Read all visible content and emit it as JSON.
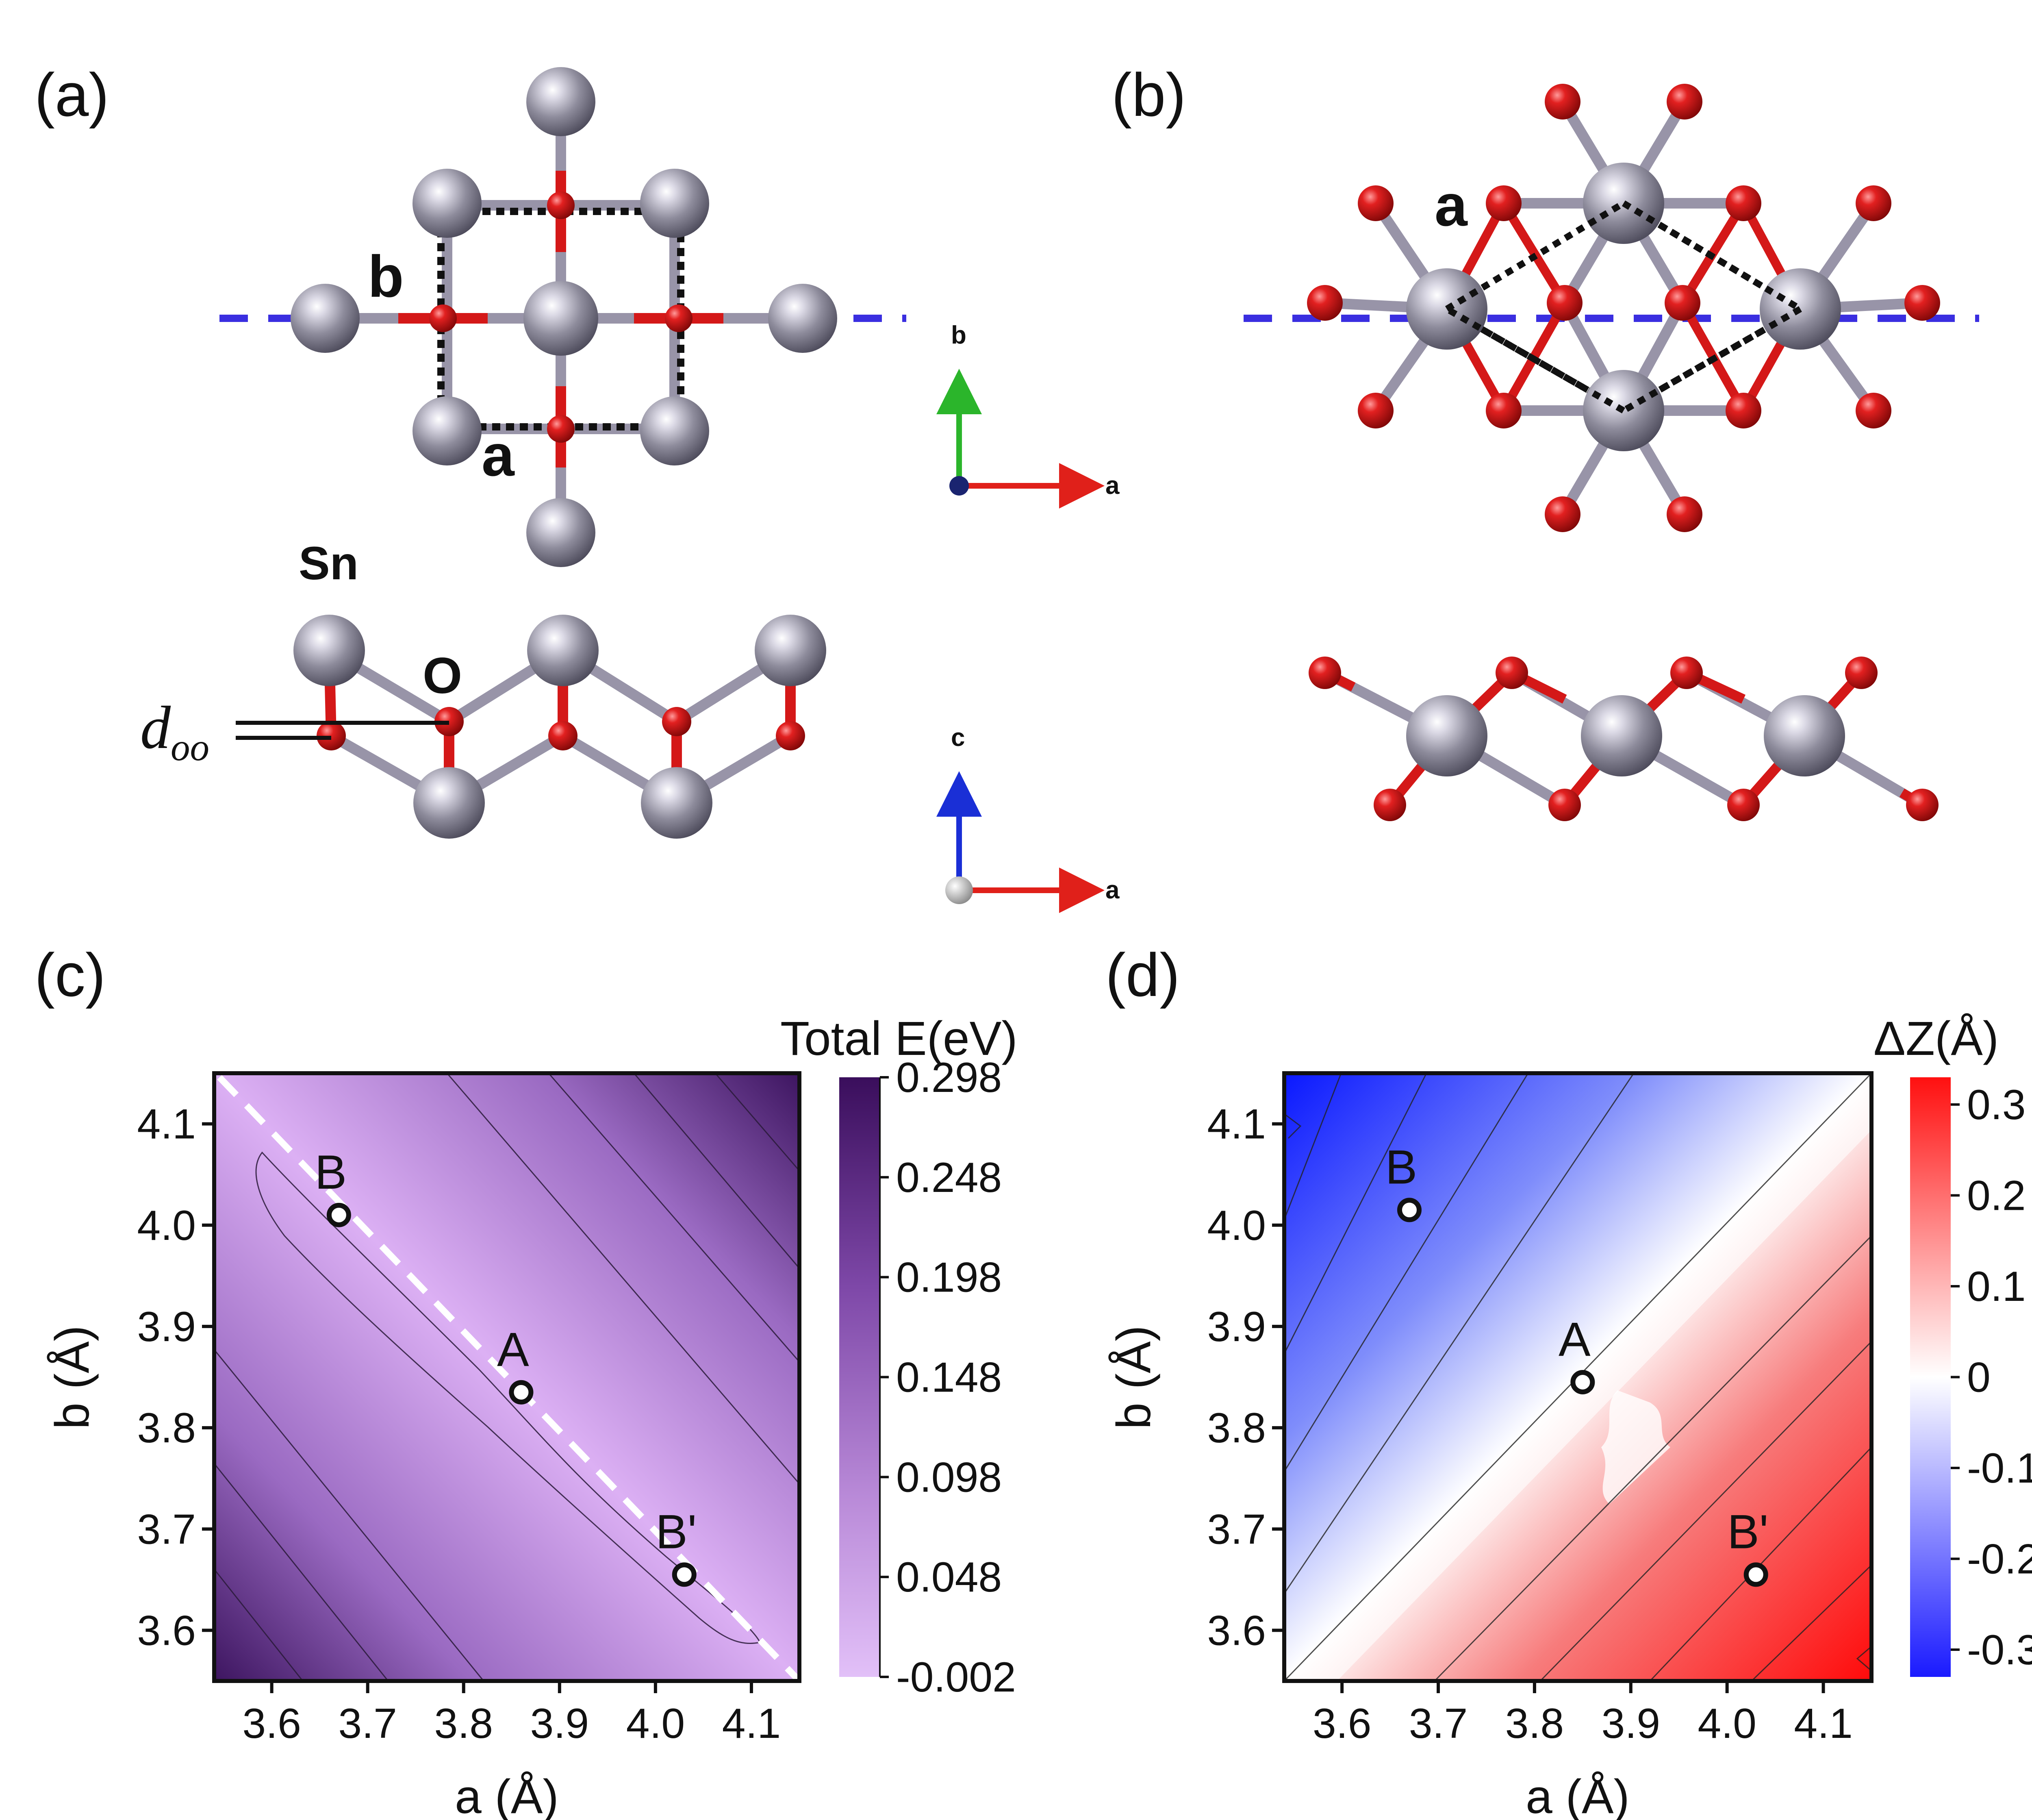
{
  "panels": {
    "a": {
      "label": "(a)",
      "top_labels": {
        "b": "b",
        "a": "a"
      },
      "side_labels": {
        "sn": "Sn",
        "o": "O",
        "doo_main": "d",
        "doo_sub": "oo"
      }
    },
    "b": {
      "label": "(b)",
      "top_labels": {
        "a": "a"
      }
    },
    "c": {
      "label": "(c)"
    },
    "d": {
      "label": "(d)"
    }
  },
  "axes_triads": {
    "top": {
      "vertical": "b",
      "horizontal": "a"
    },
    "side": {
      "vertical": "c",
      "horizontal": "a"
    }
  },
  "colors": {
    "tin": "#8e8c9c",
    "oxygen": "#d41818",
    "bond_sn": "#9894a8",
    "dashed_axis": "#3a2ee0",
    "arrow_red": "#e0201a",
    "arrow_green": "#2bb52b",
    "arrow_blue": "#1a2fd6"
  },
  "chart_data": [
    {
      "type": "heatmap",
      "panel": "(c)",
      "xlabel": "a (Å)",
      "ylabel": "b (Å)",
      "xlim": [
        3.54,
        4.15
      ],
      "ylim": [
        3.55,
        4.15
      ],
      "xticks": [
        "3.6",
        "3.7",
        "3.8",
        "3.9",
        "4.0",
        "4.1"
      ],
      "yticks": [
        "3.6",
        "3.7",
        "3.8",
        "3.9",
        "4.0",
        "4.1"
      ],
      "colorbar_title": "Total E(eV)",
      "colorbar_ticks": [
        "0.298",
        "0.248",
        "0.198",
        "0.148",
        "0.098",
        "0.048",
        "-0.002"
      ],
      "colorbar_range": [
        -0.002,
        0.298
      ],
      "points": [
        {
          "label": "B",
          "x": 3.67,
          "y": 4.01
        },
        {
          "label": "A",
          "x": 3.86,
          "y": 3.835
        },
        {
          "label": "B'",
          "x": 4.03,
          "y": 3.655
        }
      ],
      "dashed_line": {
        "from": [
          3.54,
          4.14
        ],
        "to": [
          4.15,
          3.55
        ]
      }
    },
    {
      "type": "heatmap",
      "panel": "(d)",
      "xlabel": "a (Å)",
      "ylabel": "b (Å)",
      "xlim": [
        3.54,
        4.15
      ],
      "ylim": [
        3.55,
        4.15
      ],
      "xticks": [
        "3.6",
        "3.7",
        "3.8",
        "3.9",
        "4.0",
        "4.1"
      ],
      "yticks": [
        "3.6",
        "3.7",
        "3.8",
        "3.9",
        "4.0",
        "4.1"
      ],
      "colorbar_title": "ΔZ(Å)",
      "colorbar_ticks": [
        "0.3",
        "0.2",
        "0.1",
        "0",
        "-0.1",
        "-0.2",
        "-0.3"
      ],
      "colorbar_range": [
        -0.33,
        0.33
      ],
      "points": [
        {
          "label": "B",
          "x": 3.67,
          "y": 4.015
        },
        {
          "label": "A",
          "x": 3.85,
          "y": 3.845
        },
        {
          "label": "B'",
          "x": 4.03,
          "y": 3.655
        }
      ]
    }
  ]
}
